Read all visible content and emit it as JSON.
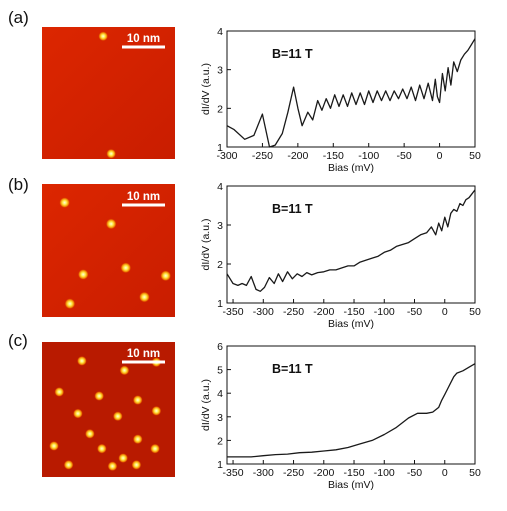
{
  "panels": [
    {
      "label": "(a)",
      "scale_bar": "10 nm",
      "adatoms": [
        [
          0.46,
          0.07
        ],
        [
          0.52,
          0.96
        ]
      ]
    },
    {
      "label": "(b)",
      "scale_bar": "10 nm",
      "adatoms": [
        [
          0.17,
          0.14
        ],
        [
          0.52,
          0.3
        ],
        [
          0.31,
          0.68
        ],
        [
          0.63,
          0.63
        ],
        [
          0.93,
          0.69
        ],
        [
          0.21,
          0.9
        ],
        [
          0.77,
          0.85
        ]
      ]
    },
    {
      "label": "(c)",
      "scale_bar": "10 nm",
      "adatoms": [
        [
          0.3,
          0.14
        ],
        [
          0.62,
          0.21
        ],
        [
          0.86,
          0.15
        ],
        [
          0.13,
          0.37
        ],
        [
          0.43,
          0.4
        ],
        [
          0.72,
          0.43
        ],
        [
          0.27,
          0.53
        ],
        [
          0.86,
          0.51
        ],
        [
          0.57,
          0.55
        ],
        [
          0.36,
          0.68
        ],
        [
          0.72,
          0.72
        ],
        [
          0.09,
          0.77
        ],
        [
          0.45,
          0.79
        ],
        [
          0.85,
          0.79
        ],
        [
          0.71,
          0.91
        ],
        [
          0.2,
          0.91
        ],
        [
          0.53,
          0.92
        ],
        [
          0.61,
          0.86
        ]
      ]
    }
  ],
  "chart_data": [
    {
      "type": "line",
      "panel": "(a)",
      "annotation": "B=11 T",
      "xlabel": "Bias (mV)",
      "ylabel": "dI/dV (a.u.)",
      "xlim": [
        -300,
        50
      ],
      "ylim": [
        1,
        4
      ],
      "xticks": [
        -300,
        -250,
        -200,
        -150,
        -100,
        -50,
        0,
        50
      ],
      "yticks": [
        1,
        2,
        3,
        4
      ],
      "series": [
        {
          "x": [
            -300,
            -290,
            -275,
            -262,
            -250,
            -240,
            -232,
            -222,
            -214,
            -206,
            -200,
            -194,
            -186,
            -179,
            -172,
            -166,
            -160,
            -154,
            -148,
            -142,
            -136,
            -130,
            -124,
            -118,
            -112,
            -106,
            -100,
            -94,
            -88,
            -82,
            -76,
            -70,
            -64,
            -58,
            -52,
            -46,
            -40,
            -34,
            -28,
            -22,
            -16,
            -10,
            -6,
            -3,
            0,
            4,
            8,
            12,
            16,
            20,
            25,
            30,
            35,
            40,
            45,
            50
          ],
          "y": [
            1.55,
            1.45,
            1.2,
            1.3,
            1.85,
            1.0,
            1.05,
            1.35,
            1.9,
            2.55,
            2.0,
            1.55,
            1.9,
            1.7,
            2.2,
            1.95,
            2.25,
            2.0,
            2.35,
            2.05,
            2.35,
            2.05,
            2.4,
            2.1,
            2.4,
            2.1,
            2.45,
            2.15,
            2.45,
            2.2,
            2.45,
            2.2,
            2.45,
            2.25,
            2.5,
            2.25,
            2.55,
            2.2,
            2.6,
            2.25,
            2.65,
            2.2,
            2.75,
            2.3,
            2.15,
            2.9,
            2.45,
            3.05,
            2.6,
            3.2,
            2.95,
            3.25,
            3.4,
            3.5,
            3.65,
            3.8
          ]
        }
      ]
    },
    {
      "type": "line",
      "panel": "(b)",
      "annotation": "B=11 T",
      "xlabel": "Bias (mV)",
      "ylabel": "dI/dV (a.u.)",
      "xlim": [
        -360,
        50
      ],
      "ylim": [
        1,
        4
      ],
      "xticks": [
        -350,
        -300,
        -250,
        -200,
        -150,
        -100,
        -50,
        0,
        50
      ],
      "yticks": [
        1,
        2,
        3,
        4
      ],
      "series": [
        {
          "x": [
            -360,
            -350,
            -342,
            -335,
            -328,
            -320,
            -312,
            -305,
            -298,
            -290,
            -282,
            -275,
            -268,
            -260,
            -252,
            -244,
            -236,
            -228,
            -220,
            -210,
            -200,
            -190,
            -180,
            -170,
            -160,
            -150,
            -140,
            -130,
            -120,
            -110,
            -100,
            -90,
            -80,
            -70,
            -60,
            -50,
            -40,
            -30,
            -22,
            -15,
            -10,
            -5,
            0,
            5,
            10,
            15,
            20,
            25,
            30,
            35,
            40,
            45,
            50
          ],
          "y": [
            1.75,
            1.5,
            1.45,
            1.5,
            1.45,
            1.68,
            1.35,
            1.3,
            1.4,
            1.65,
            1.5,
            1.75,
            1.55,
            1.8,
            1.62,
            1.75,
            1.68,
            1.78,
            1.72,
            1.78,
            1.8,
            1.85,
            1.85,
            1.9,
            1.95,
            1.95,
            2.05,
            2.1,
            2.15,
            2.2,
            2.3,
            2.35,
            2.45,
            2.5,
            2.55,
            2.65,
            2.75,
            2.8,
            2.95,
            2.75,
            3.05,
            2.85,
            3.2,
            2.95,
            3.3,
            3.4,
            3.35,
            3.55,
            3.5,
            3.65,
            3.7,
            3.8,
            3.9
          ]
        }
      ]
    },
    {
      "type": "line",
      "panel": "(c)",
      "annotation": "B=11 T",
      "xlabel": "Bias (mV)",
      "ylabel": "dI/dV (a.u.)",
      "xlim": [
        -360,
        50
      ],
      "ylim": [
        1,
        6
      ],
      "xticks": [
        -350,
        -300,
        -250,
        -200,
        -150,
        -100,
        -50,
        0,
        50
      ],
      "yticks": [
        1,
        2,
        3,
        4,
        5,
        6
      ],
      "series": [
        {
          "x": [
            -360,
            -340,
            -320,
            -300,
            -280,
            -260,
            -240,
            -220,
            -200,
            -180,
            -160,
            -140,
            -120,
            -100,
            -80,
            -60,
            -45,
            -30,
            -20,
            -10,
            -5,
            0,
            5,
            10,
            15,
            20,
            30,
            40,
            50
          ],
          "y": [
            1.3,
            1.3,
            1.3,
            1.35,
            1.4,
            1.42,
            1.48,
            1.5,
            1.55,
            1.6,
            1.7,
            1.85,
            2.0,
            2.25,
            2.55,
            2.95,
            3.15,
            3.15,
            3.2,
            3.4,
            3.7,
            3.95,
            4.2,
            4.45,
            4.7,
            4.85,
            4.95,
            5.1,
            5.25
          ]
        }
      ]
    }
  ]
}
